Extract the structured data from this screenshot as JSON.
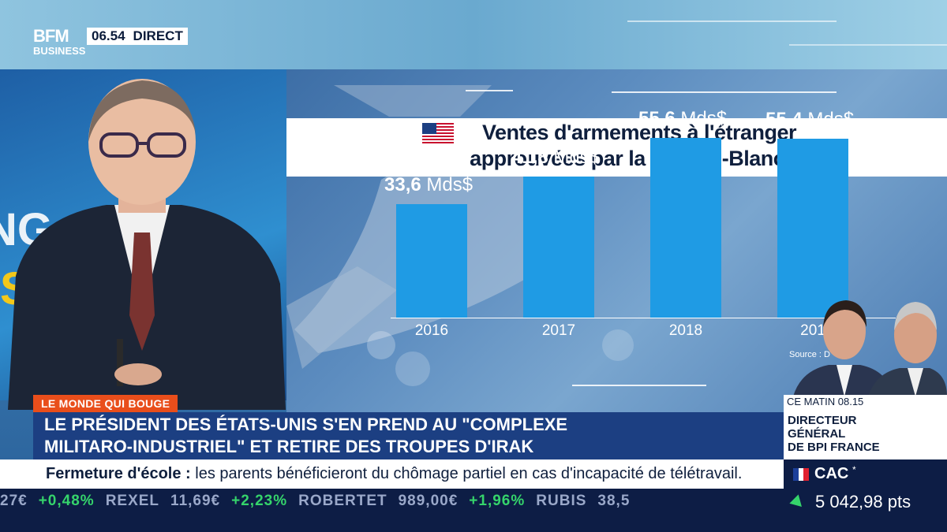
{
  "channel": {
    "logo_line1": "BFM",
    "logo_line2": "BUSINESS",
    "clock": "06.54",
    "live_label": "DIRECT"
  },
  "chart_data": {
    "type": "bar",
    "title": "Ventes d'armements à l'étranger approuvées par la Maison-Blanche",
    "title_line1": "Ventes d'armements à l'étranger",
    "title_line2": "approuvées par la Maison-Blanche",
    "categories": [
      "2016",
      "2017",
      "2018",
      "201"
    ],
    "values": [
      33.6,
      41.8,
      55.6,
      55.4
    ],
    "value_labels": [
      {
        "num": "33,6",
        "unit": "Mds$"
      },
      {
        "num": "41,8",
        "unit": "Mds$"
      },
      {
        "num": "55,6",
        "unit": "Mds$"
      },
      {
        "num": "55,4",
        "unit": "Mds$"
      }
    ],
    "ylim": [
      0,
      60
    ],
    "grid": false,
    "source_text": "Source : D",
    "bar_color": "#1f9be4"
  },
  "guest_box": {
    "time_label": "CE MATIN 08.15",
    "role_line1": "DIRECTEUR",
    "role_line2": "GÉNÉRAL",
    "role_line3": "DE BPI FRANCE"
  },
  "lower_third": {
    "tag": "LE MONDE QUI BOUGE",
    "tag_color": "#e94e1b",
    "headline_line1": "LE PRÉSIDENT DES ÉTATS-UNIS S'EN PREND AU \"COMPLEXE",
    "headline_line2": "MILITARO-INDUSTRIEL\" ET RETIRE DES TROUPES D'IRAK"
  },
  "ticker": {
    "label": "Fermeture d'école :",
    "text": " les parents bénéficieront du chômage partiel en cas d'incapacité de télétravail."
  },
  "stocks": [
    {
      "text": "27€",
      "up": false
    },
    {
      "text": "+0,48%",
      "up": true
    },
    {
      "text": "REXEL",
      "up": false
    },
    {
      "text": "11,69€",
      "up": false
    },
    {
      "text": "+2,23%",
      "up": true
    },
    {
      "text": "ROBERTET",
      "up": false
    },
    {
      "text": "989,00€",
      "up": false
    },
    {
      "text": "+1,96%",
      "up": true
    },
    {
      "text": "RUBIS",
      "up": false
    },
    {
      "text": "38,5",
      "up": false
    }
  ],
  "index": {
    "name": "CAC",
    "marker": "*",
    "value": "5 042,98 pts",
    "trend_color": "#35d46b"
  }
}
